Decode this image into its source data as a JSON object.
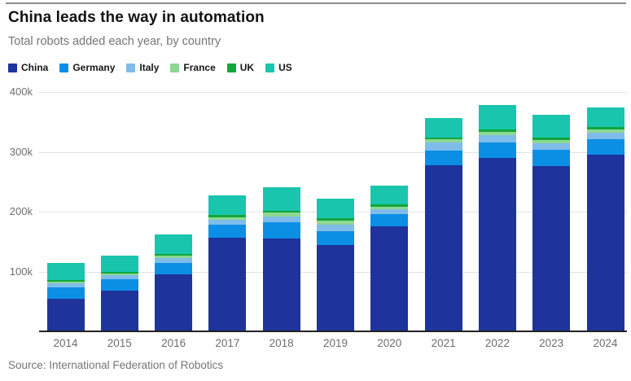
{
  "header": {
    "title": "China leads the way in automation",
    "subtitle": "Total robots added each year, by country"
  },
  "source": "Source: International Federation of Robotics",
  "chart_data": {
    "type": "bar",
    "stacked": true,
    "title": "China leads the way in automation",
    "subtitle": "Total robots added each year, by country",
    "xlabel": "",
    "ylabel": "",
    "unit": "thousands of robots added per year",
    "categories": [
      "2014",
      "2015",
      "2016",
      "2017",
      "2018",
      "2019",
      "2020",
      "2021",
      "2022",
      "2023",
      "2024"
    ],
    "series": [
      {
        "name": "China",
        "color": "#1E339B",
        "values": [
          55,
          68,
          95,
          156,
          155,
          144,
          176,
          277,
          290,
          276,
          295
        ]
      },
      {
        "name": "Germany",
        "color": "#0B8FE5",
        "values": [
          19,
          19,
          20,
          22,
          27,
          24,
          20,
          25,
          26,
          28,
          26
        ]
      },
      {
        "name": "Italy",
        "color": "#7FBCEA",
        "values": [
          6,
          7,
          7,
          8,
          10,
          10,
          8,
          13,
          12,
          10,
          11
        ]
      },
      {
        "name": "France",
        "color": "#8CD891",
        "values": [
          3,
          3,
          4,
          5,
          6,
          7,
          4,
          6,
          5,
          6,
          5
        ]
      },
      {
        "name": "UK",
        "color": "#12A63C",
        "values": [
          3,
          3,
          3,
          3,
          3,
          4,
          4,
          3,
          4,
          4,
          4
        ]
      },
      {
        "name": "US",
        "color": "#19C5AD",
        "values": [
          28,
          27,
          33,
          33,
          40,
          33,
          31,
          33,
          41,
          38,
          33
        ]
      }
    ],
    "totals": [
      114,
      127,
      162,
      227,
      241,
      222,
      243,
      357,
      378,
      362,
      374
    ],
    "ylim": [
      0,
      400
    ],
    "yticks": [
      {
        "value": 100,
        "label": "100k"
      },
      {
        "value": 200,
        "label": "200k"
      },
      {
        "value": 300,
        "label": "300k"
      },
      {
        "value": 400,
        "label": "400k"
      }
    ],
    "grid": "horizontal",
    "legend_position": "top-left",
    "colors": {
      "grid": "#e2e2e2",
      "axis": "#222222",
      "tick_text": "#6e6e6e",
      "title_text": "#121212",
      "muted_text": "#757575"
    }
  }
}
